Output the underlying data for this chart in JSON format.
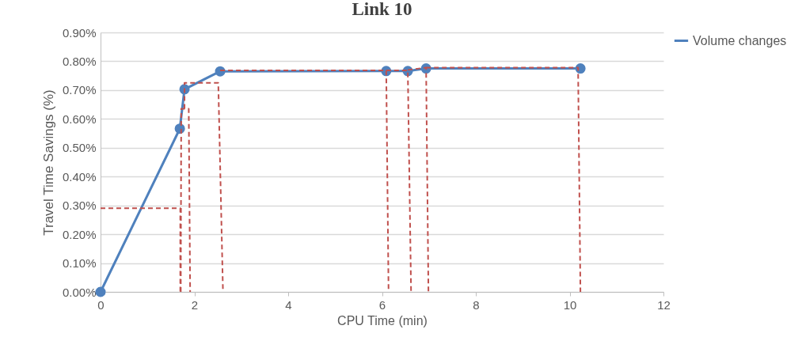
{
  "chart_data": {
    "type": "line",
    "title": "Link 10",
    "xlabel": "CPU Time (min)",
    "ylabel": "Travel Time Savings (%)",
    "xlim": [
      0,
      12
    ],
    "xticks": [
      0,
      2,
      4,
      6,
      8,
      10,
      12
    ],
    "ylim": [
      0,
      0.9
    ],
    "yticks": [
      {
        "value": 0,
        "label": "0.00%"
      },
      {
        "value": 0.1,
        "label": "0.10%"
      },
      {
        "value": 0.2,
        "label": "0.20%"
      },
      {
        "value": 0.3,
        "label": "0.30%"
      },
      {
        "value": 0.4,
        "label": "0.40%"
      },
      {
        "value": 0.5,
        "label": "0.50%"
      },
      {
        "value": 0.6,
        "label": "0.60%"
      },
      {
        "value": 0.7,
        "label": "0.70%"
      },
      {
        "value": 0.8,
        "label": "0.80%"
      },
      {
        "value": 0.9,
        "label": "0.90%"
      }
    ],
    "grid": "y",
    "legend": "right",
    "series": [
      {
        "name": "Volume changes",
        "color": "#4f81bd",
        "marker": "circle",
        "line_style": "solid",
        "x": [
          0,
          1.69,
          1.79,
          2.55,
          6.09,
          6.55,
          6.94,
          10.23
        ],
        "values": [
          0,
          0.566,
          0.703,
          0.765,
          0.766,
          0.766,
          0.775,
          0.775
        ]
      },
      {
        "color": "#c0504d",
        "marker": "none",
        "line_style": "dashed",
        "x": [
          0,
          1.7,
          1.7,
          null,
          1.71,
          1.72,
          1.88,
          1.91,
          null,
          1.79,
          1.79,
          2.51,
          2.61,
          null,
          2.55,
          6.09,
          6.14,
          null,
          6.09,
          6.55,
          6.62,
          null,
          6.55,
          6.94,
          6.99,
          null,
          6.94,
          10.18,
          10.23
        ],
        "values": [
          0.29,
          0.29,
          0,
          null,
          0,
          0.635,
          0.635,
          0,
          null,
          0.635,
          0.725,
          0.725,
          0,
          null,
          0.768,
          0.768,
          0,
          null,
          0.768,
          0.768,
          0,
          null,
          0.77,
          0.778,
          0,
          null,
          0.778,
          0.778,
          0
        ]
      }
    ]
  }
}
